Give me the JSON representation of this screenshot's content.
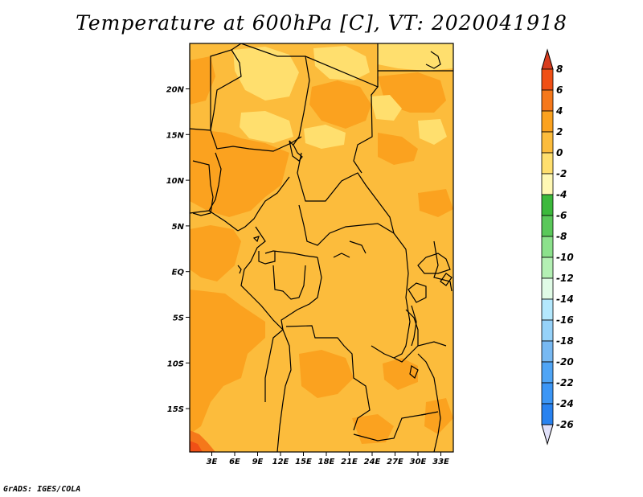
{
  "title": "Temperature at 600hPa [C], VT: 2020041918",
  "credit": "GrADS: IGES/COLA",
  "map": {
    "lat_ticks": [
      "20N",
      "15N",
      "10N",
      "5N",
      "EQ",
      "5S",
      "10S",
      "15S"
    ],
    "lon_ticks": [
      "3E",
      "6E",
      "9E",
      "12E",
      "15E",
      "18E",
      "21E",
      "24E",
      "27E",
      "30E",
      "33E"
    ]
  },
  "colorbar": {
    "labels": [
      "8",
      "6",
      "4",
      "2",
      "0",
      "-2",
      "-4",
      "-6",
      "-8",
      "-10",
      "-12",
      "-14",
      "-16",
      "-18",
      "-20",
      "-22",
      "-24",
      "-26"
    ],
    "colors": [
      "#d73c1e",
      "#f05016",
      "#f5781a",
      "#fba21f",
      "#fcbc3c",
      "#ffdf6e",
      "#fff8b4",
      "#3cb93c",
      "#5ac85a",
      "#8ce18c",
      "#b4f0b4",
      "#e0fbe6",
      "#b4e8fd",
      "#96d2f9",
      "#78b9f2",
      "#50a5f5",
      "#3c96f5",
      "#2882f0",
      "#1e6ee6",
      "#1450d2",
      "#0d2ea0"
    ],
    "top_color": "#d73c1e",
    "bottom_color": "#e1e1fa"
  }
}
